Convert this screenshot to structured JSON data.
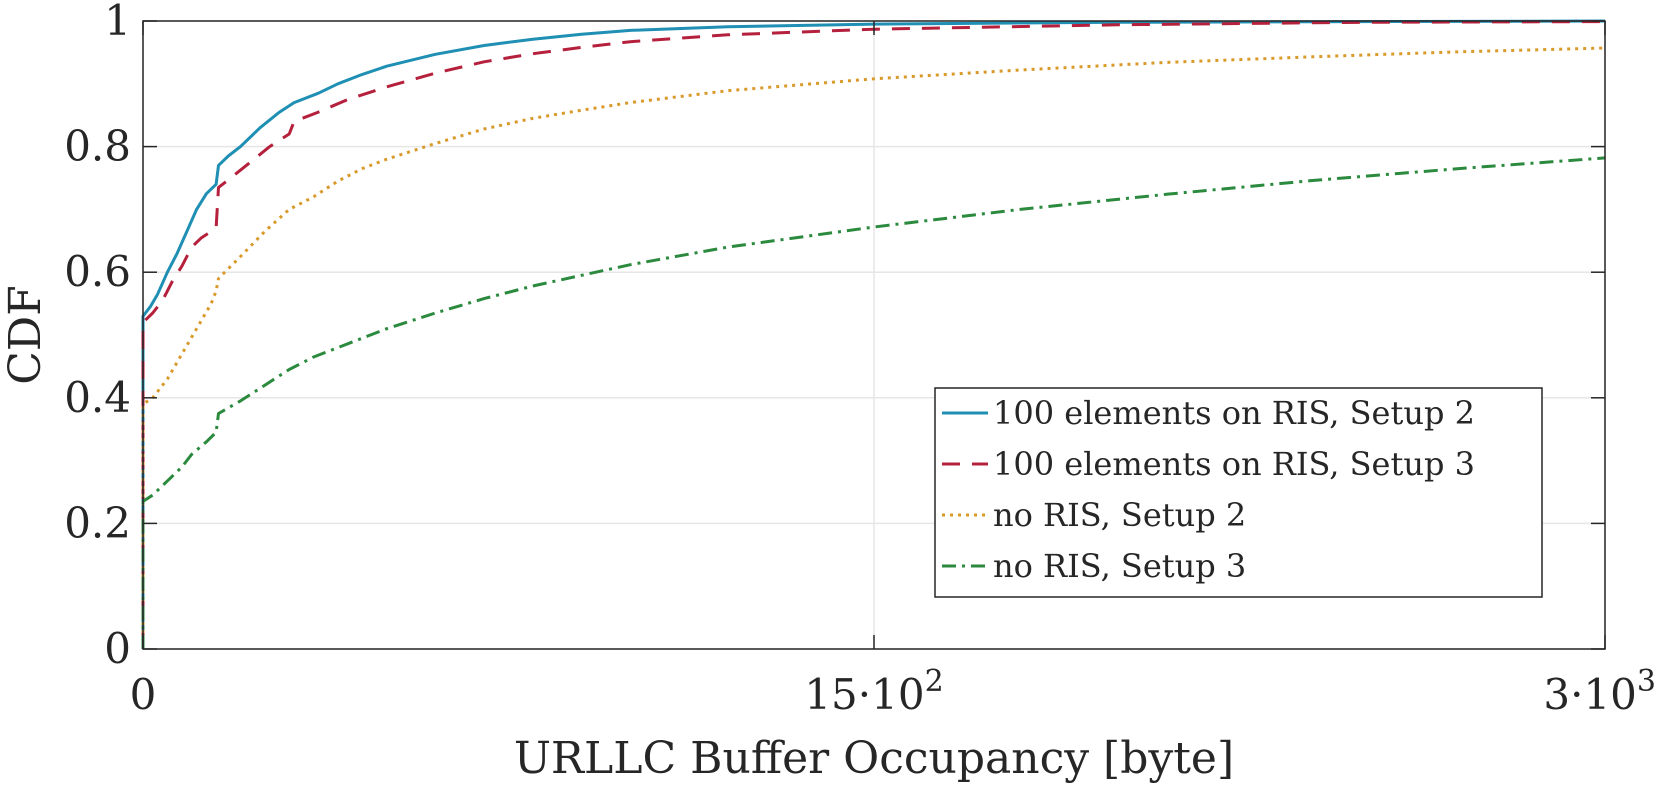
{
  "chart_data": {
    "type": "line",
    "title": "",
    "xlabel": "URLLC Buffer Occupancy [byte]",
    "ylabel": "CDF",
    "xlim": [
      0,
      3000
    ],
    "ylim": [
      0,
      1
    ],
    "grid": true,
    "legend_position": "lower-right",
    "x_ticks": [
      {
        "value": 0,
        "label": "0",
        "exp": ""
      },
      {
        "value": 1500,
        "label": "15·10",
        "exp": "2"
      },
      {
        "value": 3000,
        "label": "3·10",
        "exp": "3"
      }
    ],
    "y_ticks": [
      {
        "value": 0,
        "label": "0"
      },
      {
        "value": 0.2,
        "label": "0.2"
      },
      {
        "value": 0.4,
        "label": "0.4"
      },
      {
        "value": 0.6,
        "label": "0.6"
      },
      {
        "value": 0.8,
        "label": "0.8"
      },
      {
        "value": 1,
        "label": "1"
      }
    ],
    "series": [
      {
        "name": "100 elements on RIS, Setup 2",
        "color": "#1f8fb4",
        "dash": "solid",
        "points": [
          [
            0,
            0
          ],
          [
            0,
            0.53
          ],
          [
            15,
            0.545
          ],
          [
            30,
            0.565
          ],
          [
            50,
            0.6
          ],
          [
            70,
            0.63
          ],
          [
            90,
            0.665
          ],
          [
            110,
            0.7
          ],
          [
            130,
            0.725
          ],
          [
            150,
            0.74
          ],
          [
            155,
            0.77
          ],
          [
            175,
            0.785
          ],
          [
            200,
            0.8
          ],
          [
            240,
            0.83
          ],
          [
            280,
            0.855
          ],
          [
            310,
            0.87
          ],
          [
            360,
            0.885
          ],
          [
            400,
            0.9
          ],
          [
            450,
            0.915
          ],
          [
            500,
            0.928
          ],
          [
            600,
            0.947
          ],
          [
            700,
            0.961
          ],
          [
            800,
            0.971
          ],
          [
            900,
            0.979
          ],
          [
            1000,
            0.985
          ],
          [
            1200,
            0.991
          ],
          [
            1500,
            0.995
          ],
          [
            2000,
            0.998
          ],
          [
            2500,
            0.999
          ],
          [
            3000,
            1.0
          ]
        ]
      },
      {
        "name": "100 elements on RIS, Setup 3",
        "color": "#b5203d",
        "dash": "dashed",
        "points": [
          [
            0,
            0
          ],
          [
            0,
            0.52
          ],
          [
            20,
            0.535
          ],
          [
            40,
            0.555
          ],
          [
            60,
            0.585
          ],
          [
            80,
            0.61
          ],
          [
            100,
            0.64
          ],
          [
            120,
            0.655
          ],
          [
            150,
            0.67
          ],
          [
            155,
            0.735
          ],
          [
            180,
            0.75
          ],
          [
            220,
            0.775
          ],
          [
            260,
            0.8
          ],
          [
            300,
            0.82
          ],
          [
            310,
            0.84
          ],
          [
            360,
            0.855
          ],
          [
            420,
            0.875
          ],
          [
            500,
            0.895
          ],
          [
            600,
            0.917
          ],
          [
            700,
            0.935
          ],
          [
            800,
            0.948
          ],
          [
            900,
            0.958
          ],
          [
            1000,
            0.967
          ],
          [
            1200,
            0.978
          ],
          [
            1500,
            0.987
          ],
          [
            2000,
            0.994
          ],
          [
            2500,
            0.998
          ],
          [
            3000,
            0.999
          ]
        ]
      },
      {
        "name": "no RIS, Setup 2",
        "color": "#d99a2b",
        "dash": "dotted",
        "points": [
          [
            0,
            0
          ],
          [
            0,
            0.39
          ],
          [
            20,
            0.4
          ],
          [
            50,
            0.43
          ],
          [
            80,
            0.47
          ],
          [
            110,
            0.51
          ],
          [
            140,
            0.55
          ],
          [
            150,
            0.57
          ],
          [
            155,
            0.59
          ],
          [
            200,
            0.625
          ],
          [
            250,
            0.665
          ],
          [
            300,
            0.7
          ],
          [
            350,
            0.72
          ],
          [
            400,
            0.745
          ],
          [
            450,
            0.765
          ],
          [
            500,
            0.78
          ],
          [
            600,
            0.805
          ],
          [
            700,
            0.828
          ],
          [
            800,
            0.845
          ],
          [
            900,
            0.858
          ],
          [
            1000,
            0.87
          ],
          [
            1200,
            0.889
          ],
          [
            1500,
            0.908
          ],
          [
            1800,
            0.922
          ],
          [
            2100,
            0.934
          ],
          [
            2400,
            0.943
          ],
          [
            2700,
            0.951
          ],
          [
            3000,
            0.957
          ]
        ]
      },
      {
        "name": "no RIS, Setup 3",
        "color": "#2b8a3e",
        "dash": "dashdot",
        "points": [
          [
            0,
            0
          ],
          [
            0,
            0.235
          ],
          [
            20,
            0.245
          ],
          [
            40,
            0.26
          ],
          [
            60,
            0.275
          ],
          [
            80,
            0.29
          ],
          [
            100,
            0.31
          ],
          [
            130,
            0.33
          ],
          [
            150,
            0.345
          ],
          [
            155,
            0.375
          ],
          [
            200,
            0.395
          ],
          [
            250,
            0.42
          ],
          [
            300,
            0.445
          ],
          [
            350,
            0.465
          ],
          [
            400,
            0.48
          ],
          [
            500,
            0.51
          ],
          [
            600,
            0.535
          ],
          [
            700,
            0.558
          ],
          [
            800,
            0.578
          ],
          [
            900,
            0.595
          ],
          [
            1000,
            0.612
          ],
          [
            1200,
            0.64
          ],
          [
            1500,
            0.672
          ],
          [
            1800,
            0.7
          ],
          [
            2100,
            0.724
          ],
          [
            2400,
            0.746
          ],
          [
            2700,
            0.765
          ],
          [
            3000,
            0.782
          ]
        ]
      }
    ]
  }
}
